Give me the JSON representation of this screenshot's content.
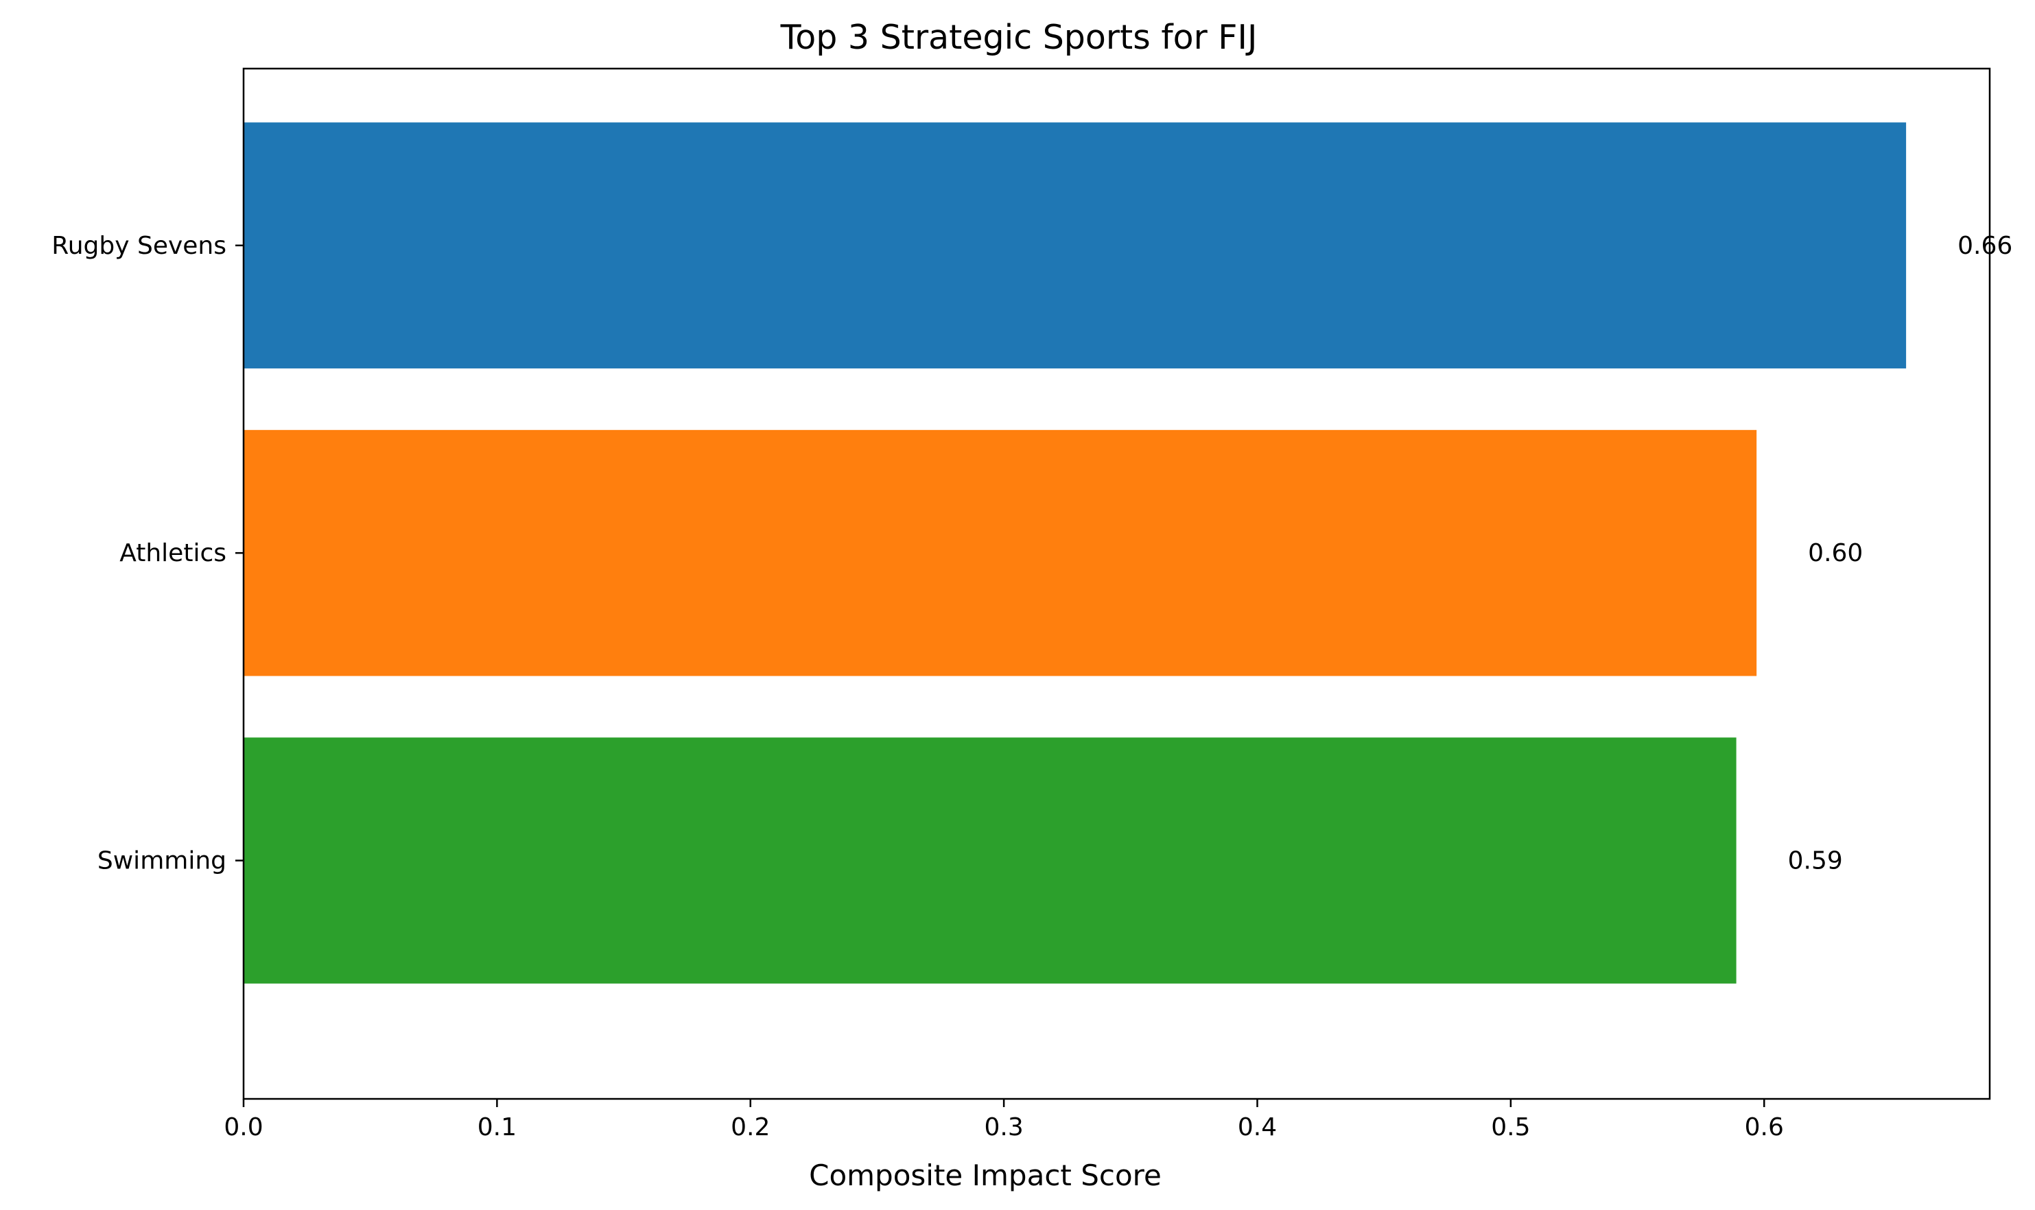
{
  "chart_data": {
    "type": "bar",
    "orientation": "horizontal",
    "title": "Top 3 Strategic Sports for FIJ",
    "xlabel": "Composite Impact Score",
    "ylabel": "",
    "categories": [
      "Rugby Sevens",
      "Athletics",
      "Swimming"
    ],
    "values": [
      0.656,
      0.597,
      0.589
    ],
    "value_labels": [
      "0.66",
      "0.60",
      "0.59"
    ],
    "colors": [
      "#1f77b4",
      "#ff7f0e",
      "#2ca02c"
    ],
    "xlim": [
      0,
      0.689
    ],
    "xticks": [
      0.0,
      0.1,
      0.2,
      0.3,
      0.4,
      0.5,
      0.6
    ],
    "xtick_labels": [
      "0.0",
      "0.1",
      "0.2",
      "0.3",
      "0.4",
      "0.5",
      "0.6"
    ],
    "grid": false,
    "legend": "none"
  }
}
